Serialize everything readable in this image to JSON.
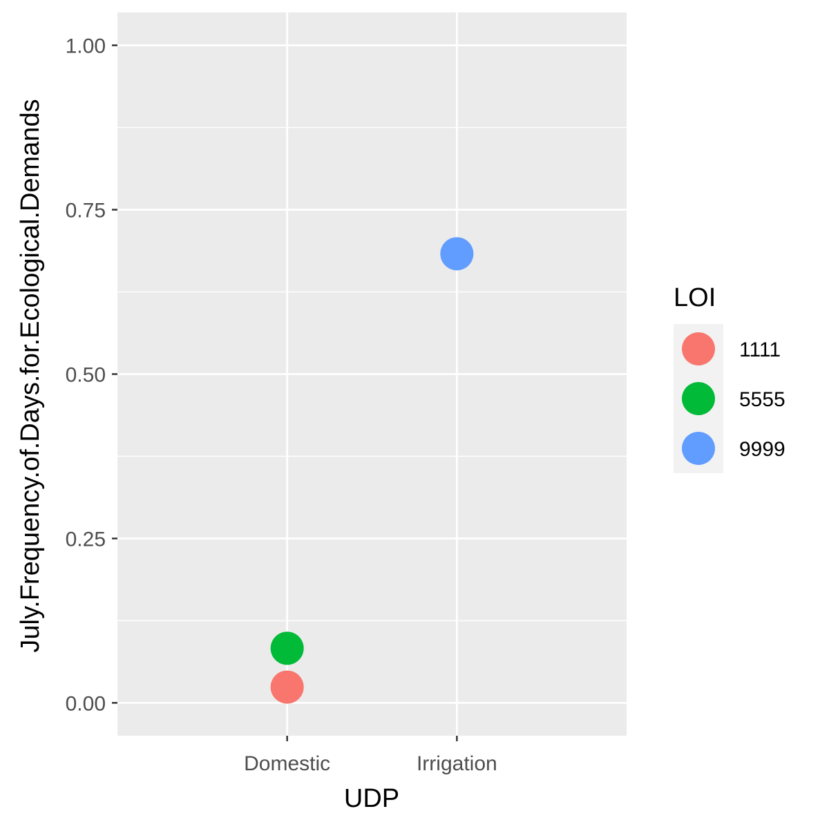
{
  "chart_data": {
    "type": "scatter",
    "title": "",
    "xlabel": "UDP",
    "ylabel": "July.Frequency.of.Days.for.Ecological.Demands",
    "categories": [
      "Domestic",
      "Irrigation"
    ],
    "ylim": [
      -0.05,
      1.05
    ],
    "yticks": [
      0.0,
      0.25,
      0.5,
      0.75,
      1.0
    ],
    "ytick_labels": [
      "0.00",
      "0.25",
      "0.50",
      "0.75",
      "1.00"
    ],
    "grid": true,
    "legend": {
      "title": "LOI",
      "position": "right",
      "entries": [
        "1111",
        "5555",
        "9999"
      ]
    },
    "series": [
      {
        "name": "1111",
        "color": "#F8766D",
        "points": [
          {
            "x": "Domestic",
            "y": 0.024
          }
        ]
      },
      {
        "name": "5555",
        "color": "#00BA38",
        "points": [
          {
            "x": "Domestic",
            "y": 0.083
          }
        ]
      },
      {
        "name": "9999",
        "color": "#619CFF",
        "points": [
          {
            "x": "Irrigation",
            "y": 0.683
          }
        ]
      }
    ],
    "colors": {
      "panel_background": "#EBEBEB",
      "grid_line": "#FFFFFF",
      "legend_key_background": "#F2F2F2"
    }
  }
}
